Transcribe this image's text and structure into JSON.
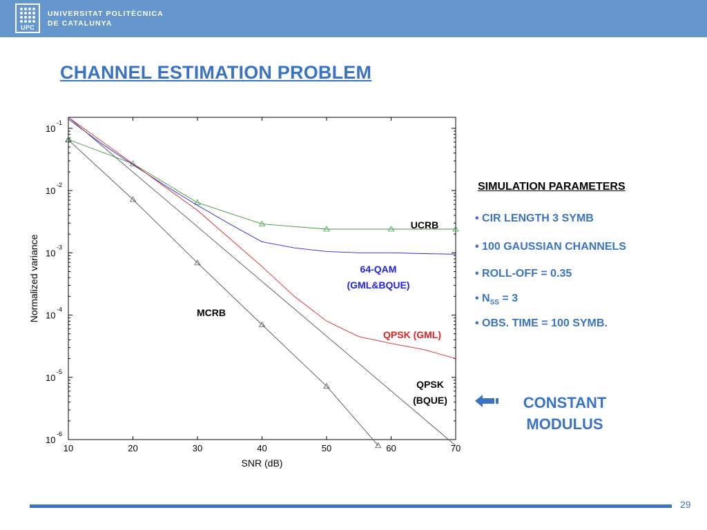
{
  "header": {
    "logo_badge": "UPC",
    "logo_line1": "UNIVERSITAT POLITÈCNICA",
    "logo_line2": "DE CATALUNYA"
  },
  "slide": {
    "title": "CHANNEL ESTIMATION PROBLEM",
    "page_number": "29"
  },
  "simulation": {
    "heading": "SIMULATION PARAMETERS",
    "params": [
      "• CIR LENGTH 3 SYMB",
      "• 100 GAUSSIAN CHANNELS",
      "• ROLL-OFF = 0.35"
    ],
    "nss_prefix": "• N",
    "nss_sub": "SS",
    "nss_suffix": " = 3",
    "obs_time": "• OBS. TIME = 100 SYMB."
  },
  "constant_modulus": {
    "line1": "CONSTANT",
    "line2": "MODULUS",
    "arrow_icon": "left-arrow-icon",
    "color": "#3a73c2"
  },
  "chart_data": {
    "type": "line",
    "xlabel": "SNR (dB)",
    "ylabel": "Normalized variance",
    "xlim": [
      10,
      70
    ],
    "ylim": [
      1e-06,
      0.15
    ],
    "yscale": "log",
    "xticks": [
      "10",
      "20",
      "30",
      "40",
      "50",
      "60",
      "70"
    ],
    "yticks": [
      {
        "base": "10",
        "exp": "-1",
        "value": 0.1
      },
      {
        "base": "10",
        "exp": "-2",
        "value": 0.01
      },
      {
        "base": "10",
        "exp": "-3",
        "value": 0.001
      },
      {
        "base": "10",
        "exp": "-4",
        "value": 0.0001
      },
      {
        "base": "10",
        "exp": "-5",
        "value": 1e-05
      },
      {
        "base": "10",
        "exp": "-6",
        "value": 1e-06
      }
    ],
    "series": [
      {
        "key": "ucrb",
        "color": "#3a9a3a",
        "marker": "triangle",
        "x": [
          10,
          20,
          30,
          40,
          50,
          60,
          70
        ],
        "y": [
          0.066,
          0.027,
          0.0064,
          0.0029,
          0.0024,
          0.0024,
          0.0024
        ]
      },
      {
        "key": "qam64",
        "color": "#2222dd",
        "x": [
          10,
          15,
          20,
          25,
          30,
          35,
          40,
          45,
          50,
          55,
          60,
          65,
          70
        ],
        "y": [
          0.14,
          0.058,
          0.026,
          0.012,
          0.0058,
          0.0029,
          0.0015,
          0.0012,
          0.00105,
          0.001,
          0.001,
          0.00097,
          0.00095
        ]
      },
      {
        "key": "qpsk_gml",
        "color": "#dd2222",
        "x": [
          10,
          20,
          30,
          40,
          45,
          50,
          55,
          60,
          65,
          70
        ],
        "y": [
          0.15,
          0.027,
          0.0048,
          0.0006,
          0.0002,
          8e-05,
          4.5e-05,
          3.5e-05,
          2.8e-05,
          2e-05
        ]
      },
      {
        "key": "qpsk_bque",
        "color": "#555555",
        "x": [
          10,
          70
        ],
        "y": [
          0.15,
          8e-07
        ]
      },
      {
        "key": "mcrb",
        "color": "#555555",
        "marker": "triangle",
        "x": [
          10,
          20,
          30,
          40,
          50,
          58
        ],
        "y": [
          0.065,
          0.0072,
          0.00069,
          7e-05,
          7.2e-06,
          8e-07
        ]
      }
    ],
    "annotations": [
      {
        "key": "ucrb",
        "lines": [
          "UCRB"
        ],
        "color": "#000000"
      },
      {
        "key": "qam64",
        "lines": [
          "64-QAM",
          "(GML&BQUE)"
        ],
        "color": "#2222dd"
      },
      {
        "key": "mcrb",
        "lines": [
          "MCRB"
        ],
        "color": "#000000"
      },
      {
        "key": "qpsk_gml",
        "lines": [
          "QPSK (GML)"
        ],
        "color": "#dd2222"
      },
      {
        "key": "qpsk_bque",
        "lines": [
          "QPSK",
          "(BQUE)"
        ],
        "color": "#000000"
      }
    ],
    "grid": false
  }
}
